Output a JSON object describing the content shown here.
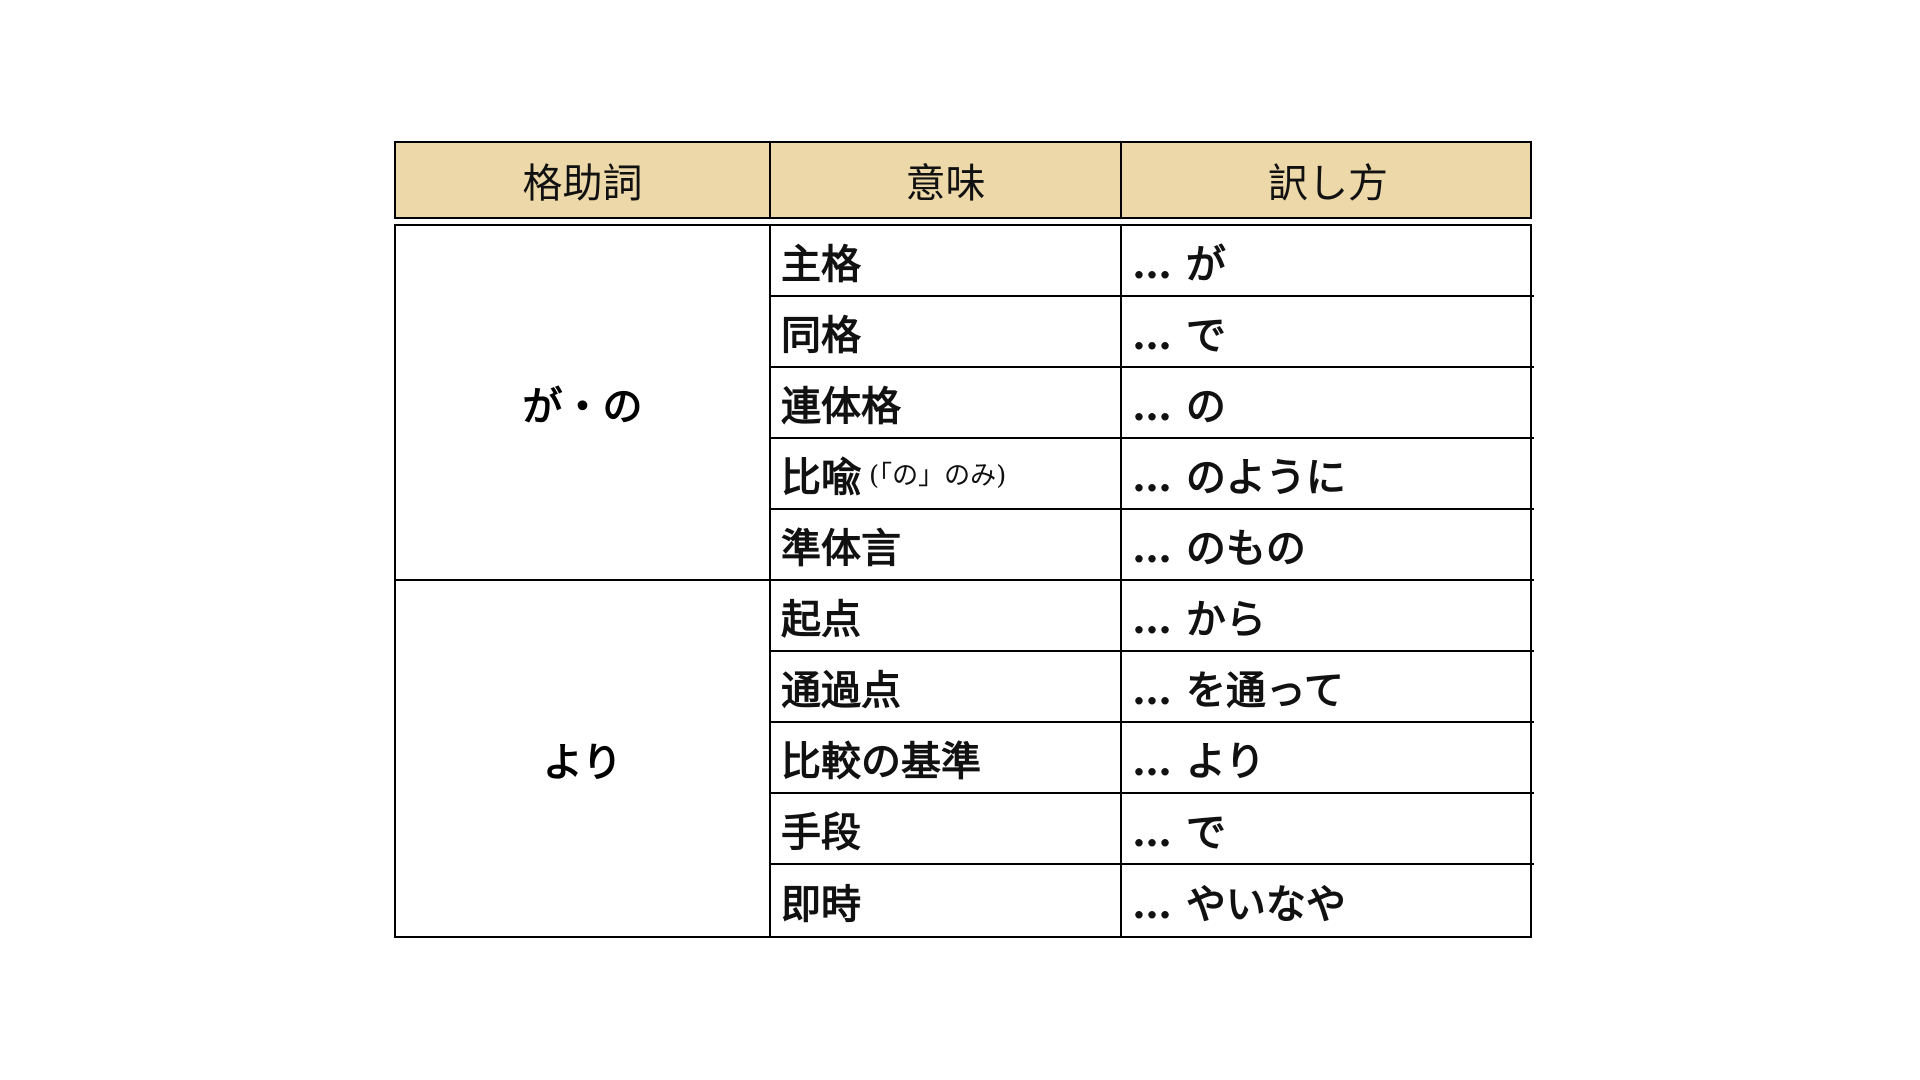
{
  "header": [
    "格助詞",
    "意味",
    "訳し方"
  ],
  "colors": {
    "header_bg": "#ecd8a8",
    "border": "#000000"
  },
  "groups": [
    {
      "particle": "が・の",
      "rows": [
        {
          "meaning": "主格",
          "note": "",
          "translation": "… が"
        },
        {
          "meaning": "同格",
          "note": "",
          "translation": "… で"
        },
        {
          "meaning": "連体格",
          "note": "",
          "translation": "… の"
        },
        {
          "meaning": "比喩",
          "note": "(「の」のみ)",
          "translation": "… のように"
        },
        {
          "meaning": "準体言",
          "note": "",
          "translation": "… のもの"
        }
      ]
    },
    {
      "particle": "より",
      "rows": [
        {
          "meaning": "起点",
          "note": "",
          "translation": "… から"
        },
        {
          "meaning": "通過点",
          "note": "",
          "translation": "… を通って"
        },
        {
          "meaning": "比較の基準",
          "note": "",
          "translation": "… より"
        },
        {
          "meaning": "手段",
          "note": "",
          "translation": "… で"
        },
        {
          "meaning": "即時",
          "note": "",
          "translation": "… やいなや"
        }
      ]
    }
  ]
}
